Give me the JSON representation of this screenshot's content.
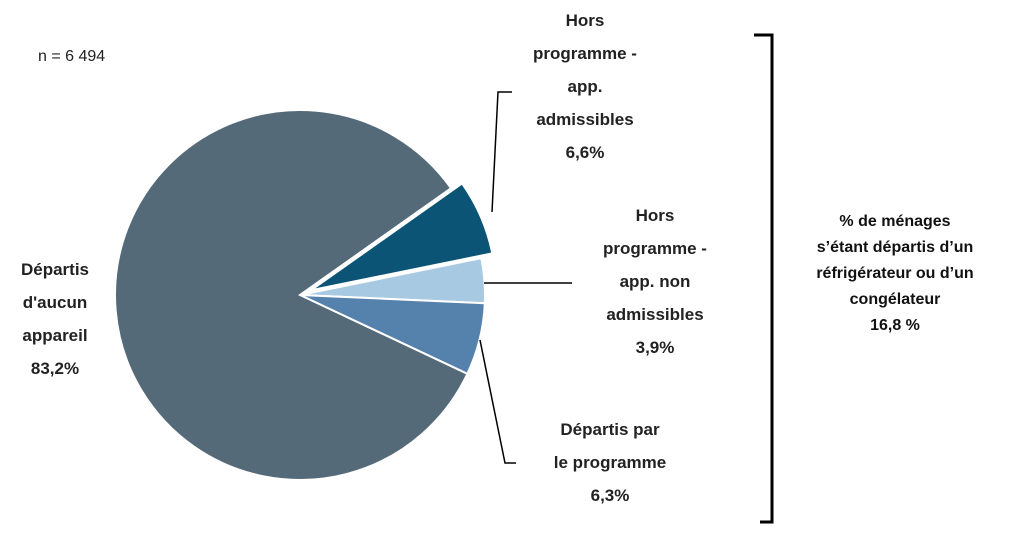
{
  "chart_data": {
    "type": "pie",
    "categories": [
      "Hors programme - app. non admissibles",
      "Départis par le programme",
      "Départis d'aucun appareil",
      "Hors programme - app. admissibles"
    ],
    "values": [
      3.9,
      6.3,
      83.2,
      6.6
    ],
    "value_labels": [
      "3,9%",
      "6,3%",
      "83,2%",
      "6,6%"
    ],
    "colors": [
      "#a7c9e2",
      "#5581ad",
      "#546a78",
      "#0b5475"
    ],
    "annotations": [
      "n = 6 494",
      "% de ménages s’étant départis d’un réfrigérateur ou d’un congélateur",
      "16,8 %"
    ]
  }
}
